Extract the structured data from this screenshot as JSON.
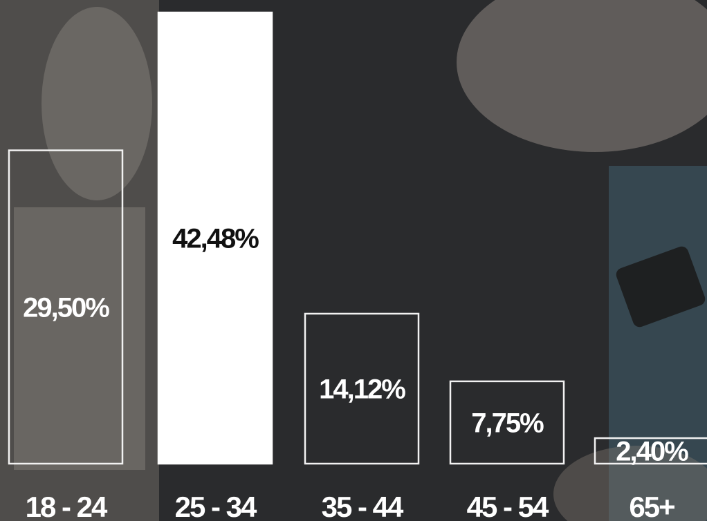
{
  "chart_data": {
    "type": "bar",
    "categories": [
      "18 - 24",
      "25 - 34",
      "35 - 44",
      "45 - 54",
      "65+"
    ],
    "values": [
      29.5,
      42.48,
      14.12,
      7.75,
      2.4
    ],
    "value_labels": [
      "29,50%",
      "42,48%",
      "14,12%",
      "7,75%",
      "2,40%"
    ],
    "highlight_index": 1,
    "ylim": [
      0,
      45
    ],
    "grid": false,
    "colors": {
      "background": "#2a2b2d",
      "bar_outline": "#f2f2f2",
      "highlight_fill": "#ffffff",
      "highlight_text": "#111111",
      "text": "#ffffff"
    }
  }
}
